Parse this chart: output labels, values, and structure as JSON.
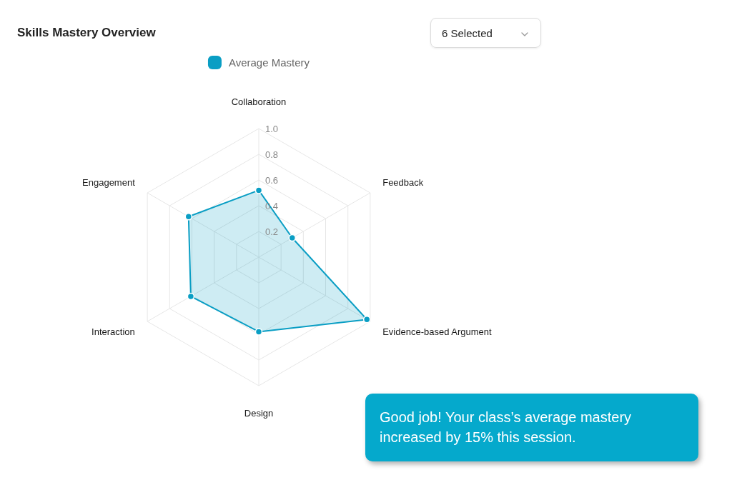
{
  "chart_data": {
    "type": "radar",
    "title": "Skills Mastery Overview",
    "categories": [
      "Collaboration",
      "Feedback",
      "Evidence-based Argument",
      "Design",
      "Interaction",
      "Engagement"
    ],
    "series": [
      {
        "name": "Average Mastery",
        "color": "#0a9ec4",
        "values": [
          0.52,
          0.3,
          0.97,
          0.58,
          0.61,
          0.63
        ]
      }
    ],
    "ylim": [
      0,
      1
    ],
    "yticks": [
      0.2,
      0.4,
      0.6,
      0.8,
      {
        "value": 1,
        "label": "1.0"
      }
    ],
    "grid": true,
    "legend": "top",
    "marker": "circle",
    "annotations": [
      "6 Selected",
      "Good job! Your class’s average mastery increased by 15% this session."
    ]
  }
}
